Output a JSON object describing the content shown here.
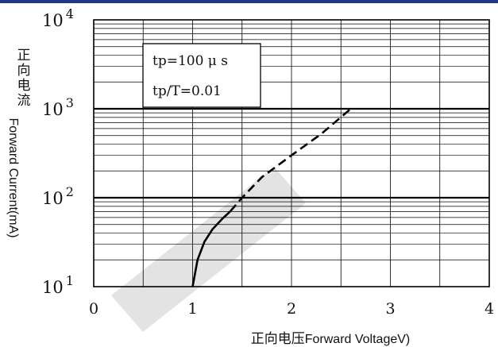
{
  "colors": {
    "top_bar": "#22368a",
    "curve": "#000000",
    "grid": "#000000",
    "watermark": "#d9d9d9"
  },
  "chart_data": {
    "type": "line",
    "title": "",
    "xlabel": "正向电压Forward VoltageV)",
    "ylabel_cn": "正向电流",
    "ylabel": "Forward Current(mA)",
    "x_scale": "linear",
    "y_scale": "log",
    "xlim": [
      0,
      4
    ],
    "ylim": [
      10,
      10000
    ],
    "grid": true,
    "x_ticks": [
      "0",
      "1",
      "2",
      "3",
      "4"
    ],
    "y_ticks": [
      {
        "base": "10",
        "exp": "1"
      },
      {
        "base": "10",
        "exp": "2"
      },
      {
        "base": "10",
        "exp": "3"
      },
      {
        "base": "10",
        "exp": "4"
      }
    ],
    "annotations": [
      "tp=100 μ s",
      "tp/T=0.01"
    ],
    "series": [
      {
        "style": "solid",
        "x": [
          1.0,
          1.05,
          1.12,
          1.2,
          1.3,
          1.38
        ],
        "y": [
          10,
          20,
          32,
          44,
          58,
          70
        ]
      },
      {
        "style": "dashed",
        "x": [
          1.38,
          1.5,
          1.7,
          2.0,
          2.3,
          2.6
        ],
        "y": [
          70,
          100,
          170,
          300,
          520,
          1000
        ]
      }
    ]
  }
}
